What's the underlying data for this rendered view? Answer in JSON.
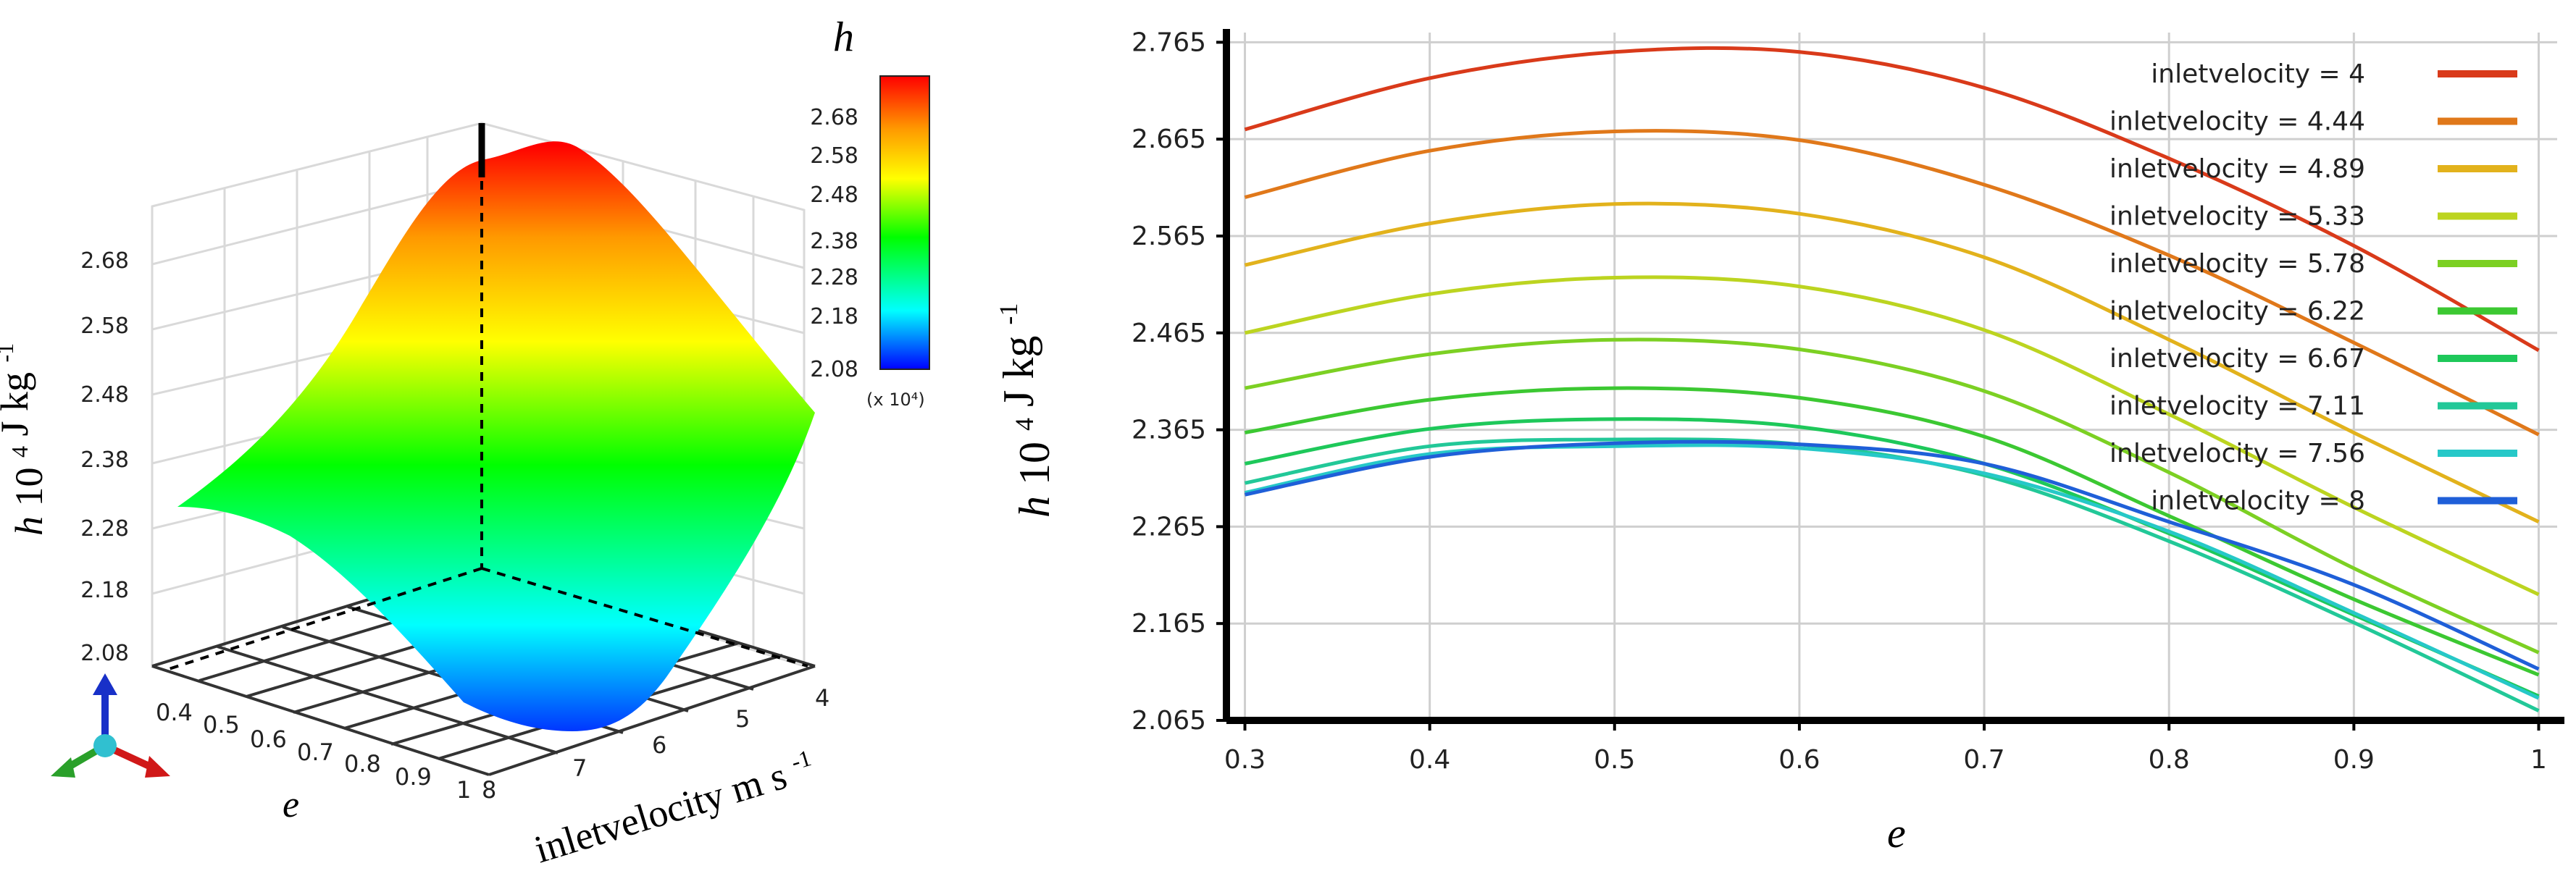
{
  "chart_data": [
    {
      "type": "surface",
      "panel": "left",
      "title": "h",
      "xlabel": "e",
      "ylabel": "inletvelocity m s-1",
      "ylabel_main": "inletvelocity",
      "ylabel_unit_base": "m s",
      "ylabel_unit_exp": "-1",
      "zlabel": "h 10^4 J kg-1",
      "zlabel_sym": "h",
      "zlabel_base": "10",
      "zlabel_exp1": "4",
      "zlabel_unit": "J kg",
      "zlabel_exp2": "-1",
      "e_ticks": [
        "0.4",
        "0.5",
        "0.6",
        "0.7",
        "0.8",
        "0.9",
        "1"
      ],
      "v_ticks": [
        "8",
        "7",
        "6",
        "5",
        "4"
      ],
      "z_ticks": [
        "2.08",
        "2.18",
        "2.28",
        "2.38",
        "2.48",
        "2.58",
        "2.68"
      ],
      "colorbar": {
        "ticks": [
          "2.68",
          "2.58",
          "2.48",
          "2.38",
          "2.28",
          "2.18",
          "2.08"
        ],
        "min": 2.08,
        "max": 2.76,
        "unit": "(x 10⁴)"
      },
      "corner_values": [
        {
          "e": 0.3,
          "v": 4,
          "h": 2.68
        },
        {
          "e": 0.55,
          "v": 4,
          "h": 2.76
        },
        {
          "e": 1,
          "v": 4,
          "h": 2.45
        },
        {
          "e": 0.3,
          "v": 8,
          "h": 2.3
        },
        {
          "e": 1,
          "v": 8,
          "h": 2.1
        }
      ]
    },
    {
      "type": "line",
      "panel": "right",
      "xlabel": "e",
      "ylabel": "h 10^4 J kg-1",
      "ylabel_sym": "h",
      "ylabel_base": "10",
      "ylabel_exp1": "4",
      "ylabel_unit": "J kg",
      "ylabel_exp2": "-1",
      "xlim": [
        0.29,
        1.01
      ],
      "ylim": [
        2.065,
        2.775
      ],
      "xticks": [
        "0.3",
        "0.4",
        "0.5",
        "0.6",
        "0.7",
        "0.8",
        "0.9",
        "1"
      ],
      "yticks": [
        "2.765",
        "2.665",
        "2.565",
        "2.465",
        "2.365",
        "2.265",
        "2.165",
        "2.065"
      ],
      "legend_position": "top-right",
      "x": [
        0.3,
        0.4,
        0.5,
        0.6,
        0.7,
        0.8,
        0.9,
        1.0
      ],
      "series": [
        {
          "name": "inletvelocity = 4",
          "color": "#d93a1a",
          "values": [
            2.675,
            2.728,
            2.755,
            2.755,
            2.718,
            2.645,
            2.555,
            2.447
          ]
        },
        {
          "name": "inletvelocity = 4.44",
          "color": "#e0781a",
          "values": [
            2.605,
            2.653,
            2.673,
            2.664,
            2.618,
            2.545,
            2.455,
            2.36
          ]
        },
        {
          "name": "inletvelocity = 4.89",
          "color": "#e2b21c",
          "values": [
            2.535,
            2.578,
            2.598,
            2.588,
            2.543,
            2.458,
            2.362,
            2.27
          ]
        },
        {
          "name": "inletvelocity = 5.33",
          "color": "#bcd420",
          "values": [
            2.465,
            2.505,
            2.522,
            2.513,
            2.468,
            2.381,
            2.285,
            2.195
          ]
        },
        {
          "name": "inletvelocity = 5.78",
          "color": "#7cd023",
          "values": [
            2.408,
            2.443,
            2.458,
            2.448,
            2.405,
            2.321,
            2.222,
            2.135
          ]
        },
        {
          "name": "inletvelocity = 6.22",
          "color": "#3cc832",
          "values": [
            2.362,
            2.396,
            2.408,
            2.398,
            2.358,
            2.276,
            2.19,
            2.112
          ]
        },
        {
          "name": "inletvelocity = 6.67",
          "color": "#1ec85a",
          "values": [
            2.33,
            2.366,
            2.376,
            2.368,
            2.33,
            2.258,
            2.174,
            2.09
          ]
        },
        {
          "name": "inletvelocity = 7.11",
          "color": "#22c898",
          "values": [
            2.31,
            2.348,
            2.355,
            2.35,
            2.318,
            2.25,
            2.166,
            2.075
          ]
        },
        {
          "name": "inletvelocity = 7.56",
          "color": "#26c8c8",
          "values": [
            2.3,
            2.34,
            2.348,
            2.346,
            2.32,
            2.26,
            2.176,
            2.088
          ]
        },
        {
          "name": "inletvelocity = 8",
          "color": "#1f5fd8",
          "values": [
            2.298,
            2.337,
            2.351,
            2.35,
            2.33,
            2.27,
            2.205,
            2.118
          ]
        }
      ]
    }
  ]
}
